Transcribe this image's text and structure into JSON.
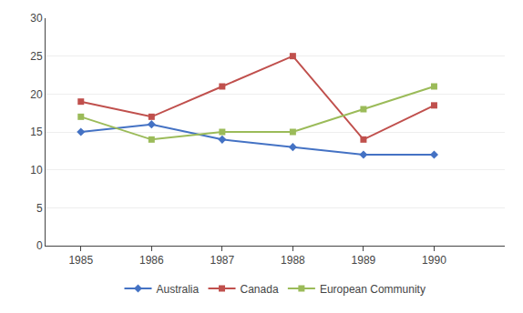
{
  "chart_data": {
    "type": "line",
    "x": [
      1985,
      1986,
      1987,
      1988,
      1989,
      1990
    ],
    "series": [
      {
        "name": "Australia",
        "color": "#4472C4",
        "marker": "diamond",
        "values": [
          15,
          16,
          14,
          13,
          12,
          12
        ]
      },
      {
        "name": "Canada",
        "color": "#C0504D",
        "marker": "square",
        "values": [
          19,
          17,
          21,
          25,
          14,
          18.5
        ]
      },
      {
        "name": "European Community",
        "color": "#9BBB59",
        "marker": "square",
        "values": [
          17,
          14,
          15,
          15,
          18,
          21
        ]
      }
    ],
    "xlim": [
      1984.5,
      1991.0
    ],
    "xticks": [
      1985,
      1986,
      1987,
      1988,
      1989,
      1990
    ],
    "ylim": [
      0,
      30
    ],
    "yticks": [
      0,
      5,
      10,
      15,
      20,
      25,
      30
    ],
    "grid": true,
    "legend": "bottom"
  }
}
